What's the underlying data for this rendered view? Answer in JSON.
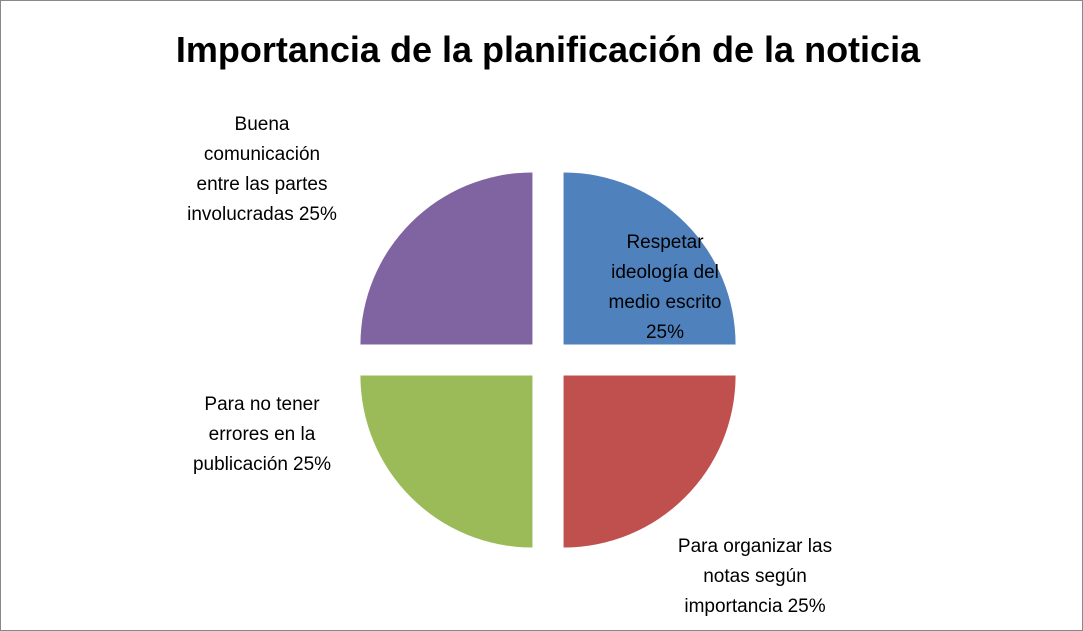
{
  "chart_data": {
    "type": "pie",
    "title": "Importancia de la planificación de la noticia",
    "categories": [
      "Respetar\nideología del\nmedio escrito",
      "Para organizar las\nnotas según\nimportancia",
      "Para no tener\nerrores en la\npublicación",
      "Buena\ncomunicación\nentre las partes\ninvolucradas"
    ],
    "values": [
      25,
      25,
      25,
      25
    ],
    "value_labels": [
      "25%",
      "25%",
      "25%",
      "25%"
    ],
    "colors": [
      "#4f81bd",
      "#c0504d",
      "#9bbb59",
      "#8064a2"
    ]
  }
}
